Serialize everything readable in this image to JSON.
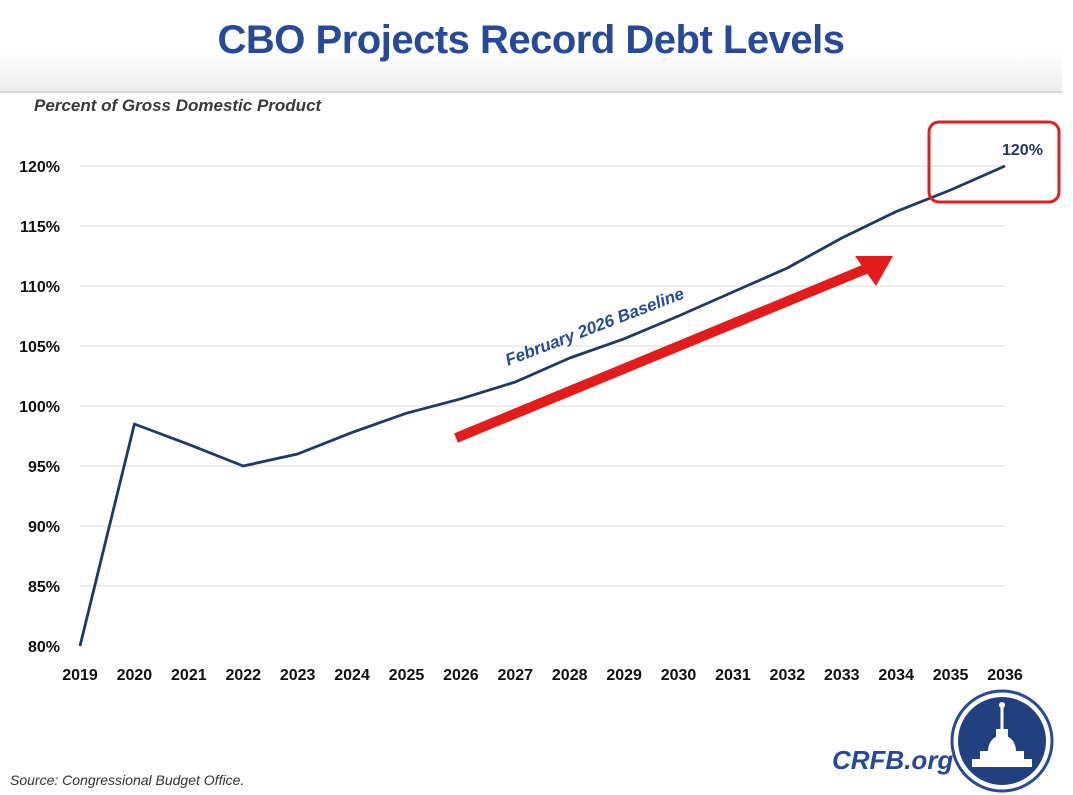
{
  "title": "CBO Projects Record Debt Levels",
  "source": "Source: Congressional Budget Office.",
  "brand": "CRFB.org",
  "chart_data": {
    "type": "line",
    "title": "CBO Projects Record Debt Levels",
    "ylabel": "Percent of Gross Domestic Product",
    "xlabel": "",
    "x": [
      2019,
      2020,
      2021,
      2022,
      2023,
      2024,
      2025,
      2026,
      2027,
      2028,
      2029,
      2030,
      2031,
      2032,
      2033,
      2034,
      2035,
      2036
    ],
    "x_tick_labels": [
      "2019",
      "2020",
      "2021",
      "2022",
      "2023",
      "2024",
      "2025",
      "2026",
      "2027",
      "2028",
      "2029",
      "2030",
      "2031",
      "2032",
      "2033",
      "2034",
      "2035",
      "2036"
    ],
    "series": [
      {
        "name": "February 2026 Baseline",
        "values": [
          80.0,
          98.5,
          96.8,
          95.0,
          96.0,
          97.8,
          99.4,
          100.6,
          102.0,
          104.0,
          105.6,
          107.5,
          109.5,
          111.5,
          114.0,
          116.2,
          118.0,
          120.0
        ],
        "color": "#1f3864"
      }
    ],
    "ylim": [
      80,
      120
    ],
    "y_ticks": [
      80,
      85,
      90,
      95,
      100,
      105,
      110,
      115,
      120
    ],
    "y_tick_labels": [
      "80%",
      "85%",
      "90%",
      "95%",
      "100%",
      "105%",
      "110%",
      "115%",
      "120%"
    ],
    "annotations": {
      "series_label": "February 2026 Baseline",
      "end_value_label": "120%",
      "highlight_color": "#e02020",
      "arrow_color": "#e31b1b"
    },
    "grid": true
  }
}
